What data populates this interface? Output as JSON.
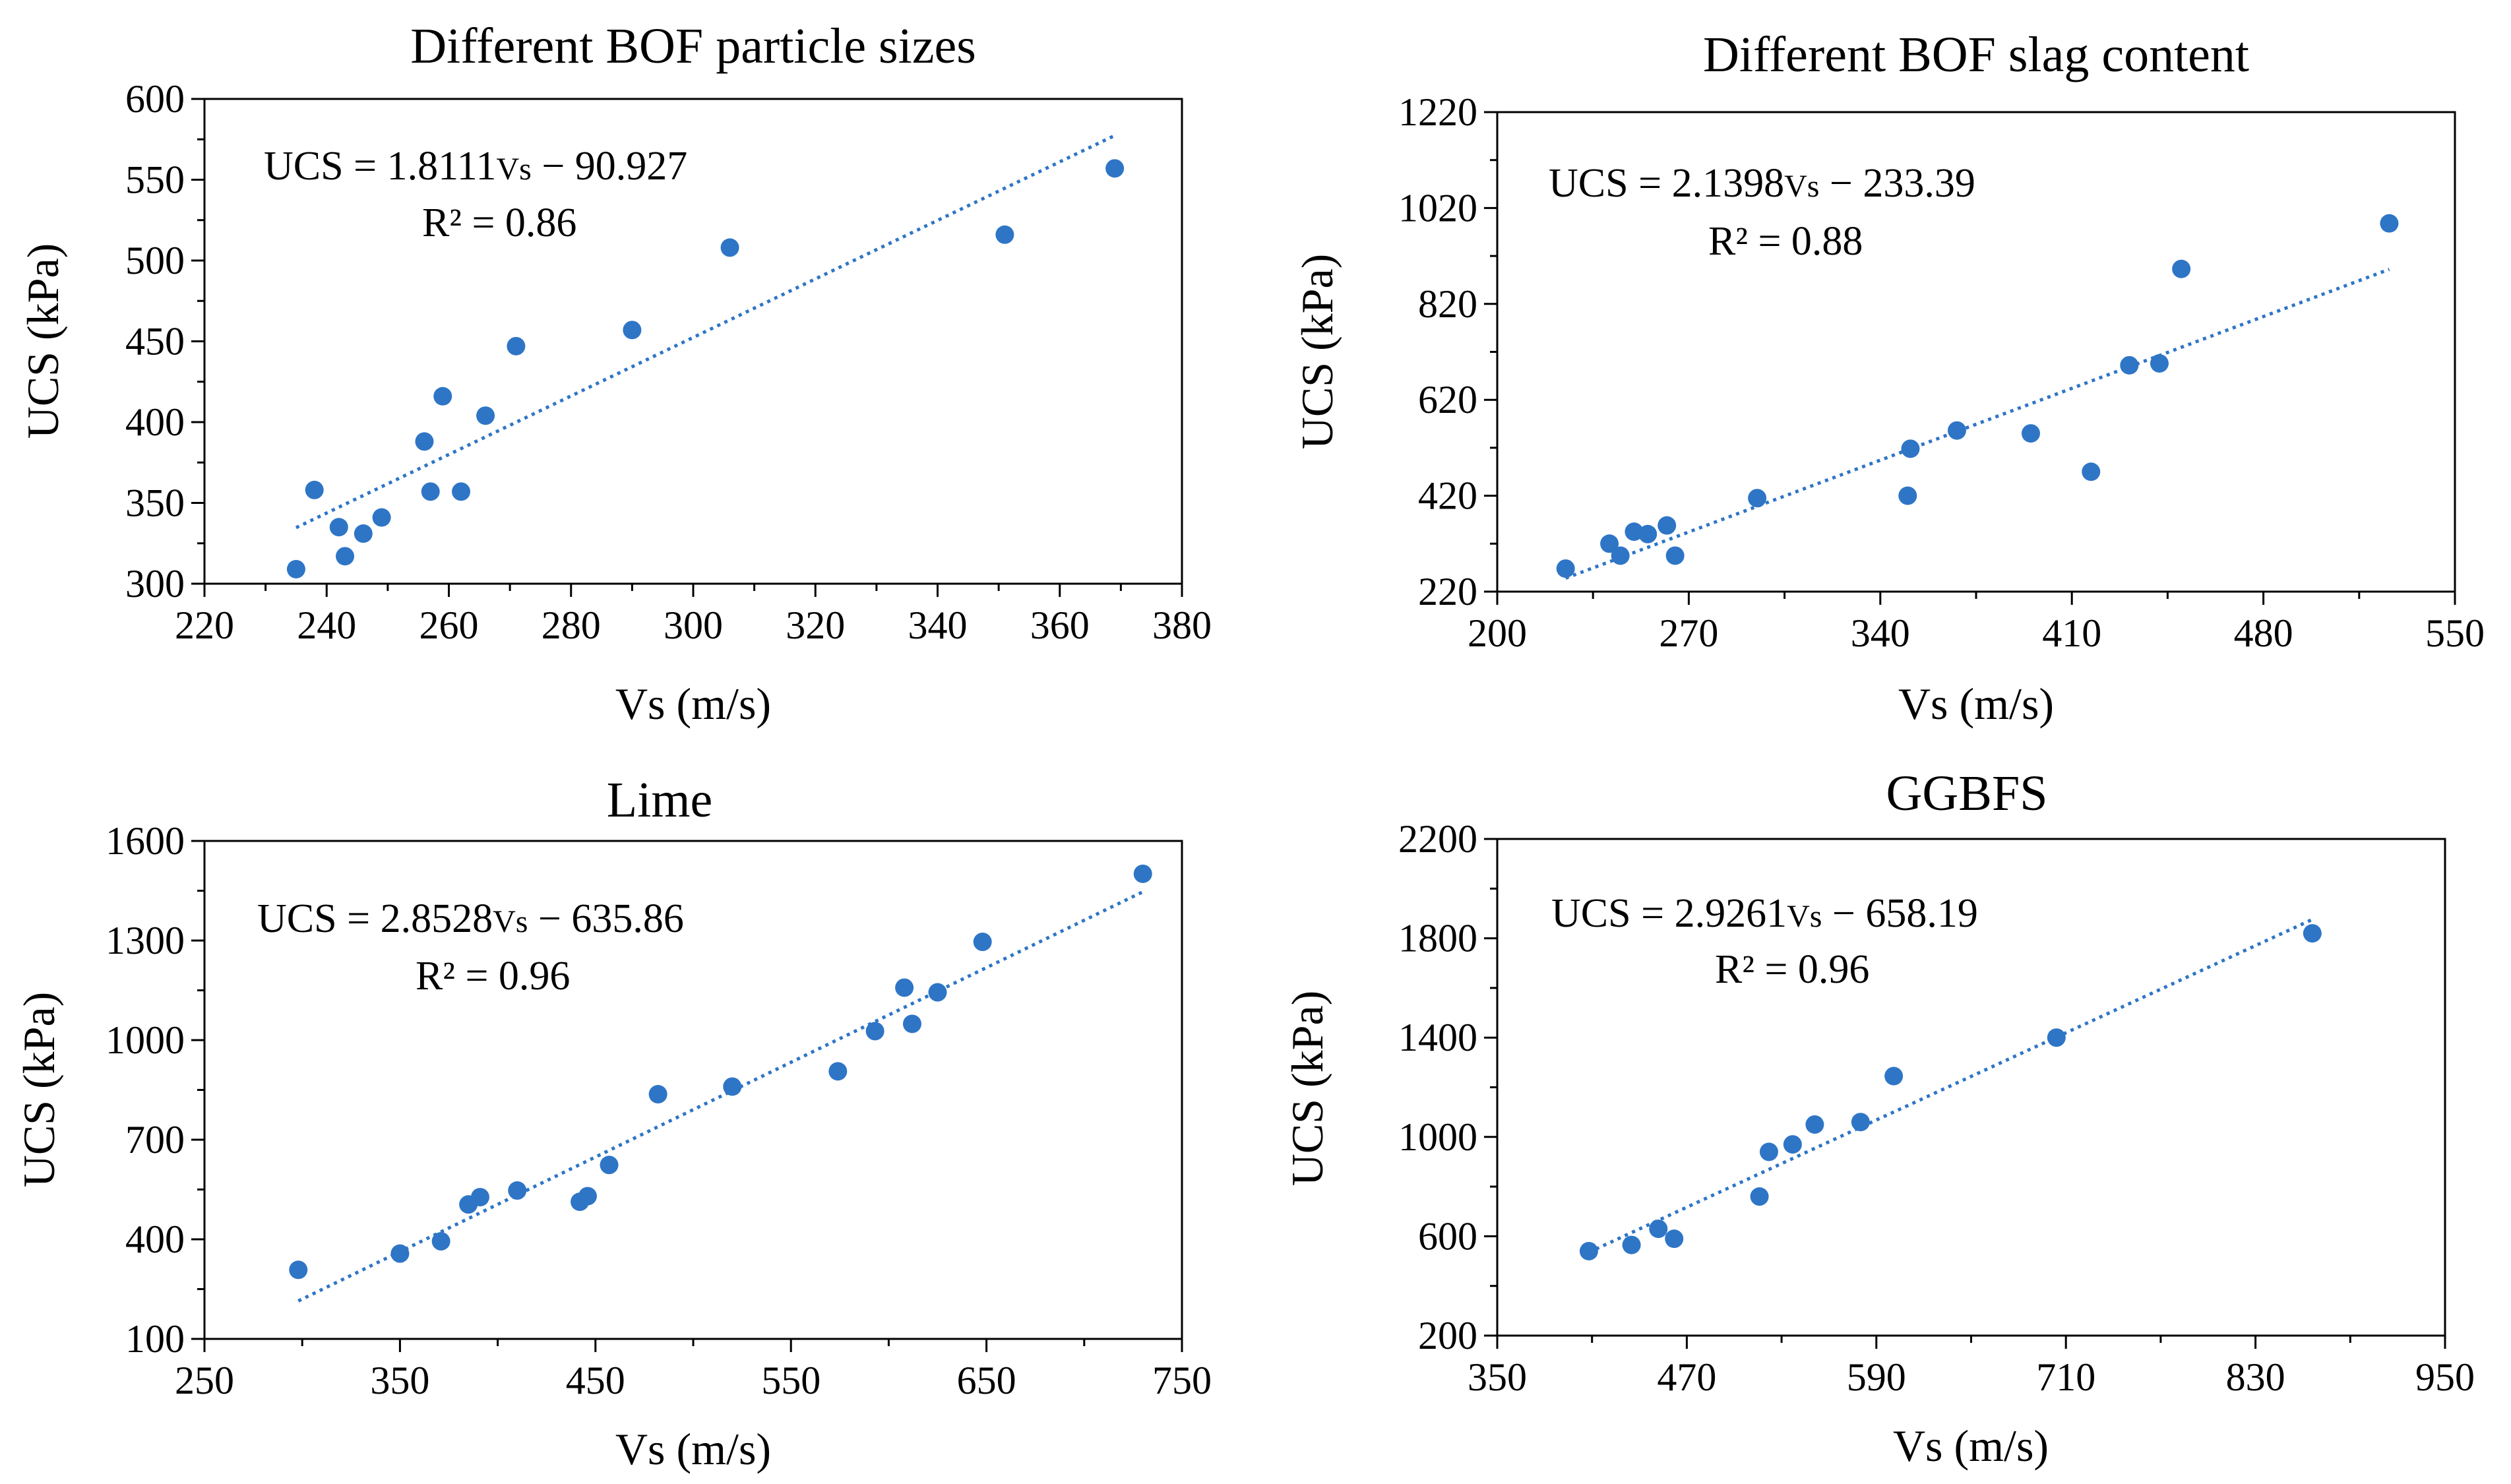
{
  "colors": {
    "marker": "#2E75C6",
    "trendline": "#2E75C6",
    "axis": "#000000",
    "text": "#000000"
  },
  "chart_data": [
    {
      "type": "scatter",
      "title": "Different BOF particle sizes",
      "xlabel": "Vs (m/s)",
      "ylabel": "UCS (kPa)",
      "xlim": [
        220,
        380
      ],
      "ylim": [
        300,
        600
      ],
      "xticks": [
        220,
        240,
        260,
        280,
        300,
        320,
        340,
        360,
        380
      ],
      "yticks": [
        300,
        350,
        400,
        450,
        500,
        550,
        600
      ],
      "x": [
        235,
        238,
        242,
        243,
        246,
        249,
        256,
        257,
        259,
        262,
        266,
        271,
        290,
        306,
        351,
        369
      ],
      "y": [
        309,
        358,
        335,
        317,
        331,
        341,
        388,
        357,
        416,
        357,
        404,
        447,
        457,
        508,
        516,
        557
      ],
      "trendline": {
        "slope": 1.8111,
        "intercept": -90.927,
        "x_range": [
          235,
          369
        ]
      },
      "equation": {
        "prefix": "UCS = 1.8111",
        "vs": "Vs",
        "suffix": " − 90.927"
      },
      "r2": "R² = 0.86"
    },
    {
      "type": "scatter",
      "title": "Different BOF slag content",
      "xlabel": "Vs (m/s)",
      "ylabel": "UCS (kPa)",
      "xlim": [
        200,
        550
      ],
      "ylim": [
        220,
        1220
      ],
      "xticks": [
        200,
        270,
        340,
        410,
        480,
        550
      ],
      "yticks": [
        220,
        420,
        620,
        820,
        1020,
        1220
      ],
      "x": [
        225,
        241,
        245,
        250,
        255,
        262,
        265,
        295,
        350,
        351,
        368,
        395,
        417,
        431,
        442,
        450,
        526
      ],
      "y": [
        268,
        320,
        295,
        345,
        340,
        358,
        295,
        415,
        420,
        518,
        556,
        550,
        470,
        692,
        696,
        893,
        988
      ],
      "trendline": {
        "slope": 2.1398,
        "intercept": -233.39,
        "x_range": [
          225,
          526
        ]
      },
      "equation": {
        "prefix": "UCS = 2.1398",
        "vs": "Vs",
        "suffix": " − 233.39"
      },
      "r2": "R² = 0.88"
    },
    {
      "type": "scatter",
      "title": "Lime",
      "xlabel": "Vs (m/s)",
      "ylabel": "UCS (kPa)",
      "xlim": [
        250,
        750
      ],
      "ylim": [
        100,
        1600
      ],
      "xticks": [
        250,
        350,
        450,
        550,
        650,
        750
      ],
      "yticks": [
        100,
        400,
        700,
        1000,
        1300,
        1600
      ],
      "x": [
        298,
        350,
        371,
        385,
        391,
        410,
        442,
        446,
        457,
        482,
        520,
        574,
        593,
        608,
        612,
        625,
        648,
        730
      ],
      "y": [
        308,
        357,
        394,
        505,
        527,
        547,
        513,
        530,
        624,
        837,
        860,
        906,
        1027,
        1158,
        1049,
        1144,
        1296,
        1501
      ],
      "trendline": {
        "slope": 2.8528,
        "intercept": -635.86,
        "x_range": [
          298,
          730
        ]
      },
      "equation": {
        "prefix": "UCS = 2.8528",
        "vs": "Vs",
        "suffix": " − 635.86"
      },
      "r2": "R² = 0.96"
    },
    {
      "type": "scatter",
      "title": "GGBFS",
      "xlabel": "Vs (m/s)",
      "ylabel": "UCS (kPa)",
      "xlim": [
        350,
        950
      ],
      "ylim": [
        200,
        2200
      ],
      "xticks": [
        350,
        470,
        590,
        710,
        830,
        950
      ],
      "yticks": [
        200,
        600,
        1000,
        1400,
        1800,
        2200
      ],
      "x": [
        408,
        435,
        452,
        462,
        516,
        522,
        537,
        551,
        580,
        601,
        704,
        866
      ],
      "y": [
        540,
        565,
        630,
        590,
        760,
        940,
        970,
        1050,
        1060,
        1245,
        1400,
        1820
      ],
      "trendline": {
        "slope": 2.9261,
        "intercept": -658.19,
        "x_range": [
          408,
          866
        ]
      },
      "equation": {
        "prefix": "UCS = 2.9261",
        "vs": "Vs",
        "suffix": " − 658.19"
      },
      "r2": "R² = 0.96"
    }
  ]
}
